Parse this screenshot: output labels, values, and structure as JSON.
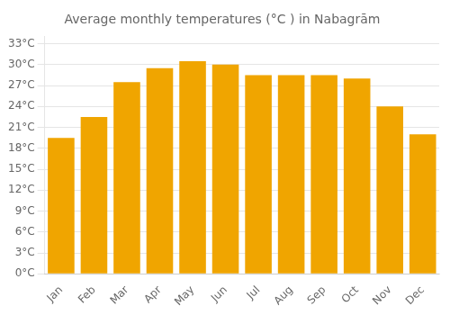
{
  "chart_data": {
    "type": "bar",
    "title": "Average monthly temperatures (°C ) in Nabagrām",
    "categories": [
      "Jan",
      "Feb",
      "Mar",
      "Apr",
      "May",
      "Jun",
      "Jul",
      "Aug",
      "Sep",
      "Oct",
      "Nov",
      "Dec"
    ],
    "values": [
      19.5,
      22.5,
      27.5,
      29.5,
      30.5,
      30.0,
      28.5,
      28.5,
      28.5,
      28.0,
      24.0,
      20.0
    ],
    "color": "#F0A500",
    "ylim": [
      0,
      34
    ],
    "yticks": [
      {
        "value": 0,
        "label": "0°C"
      },
      {
        "value": 3,
        "label": "3°C"
      },
      {
        "value": 6,
        "label": "6°C"
      },
      {
        "value": 9,
        "label": "9°C"
      },
      {
        "value": 12,
        "label": "12°C"
      },
      {
        "value": 15,
        "label": "15°C"
      },
      {
        "value": 18,
        "label": "18°C"
      },
      {
        "value": 21,
        "label": "21°C"
      },
      {
        "value": 24,
        "label": "24°C"
      },
      {
        "value": 27,
        "label": "27°C"
      },
      {
        "value": 30,
        "label": "30°C"
      },
      {
        "value": 33,
        "label": "33°C"
      }
    ],
    "grid": true
  }
}
